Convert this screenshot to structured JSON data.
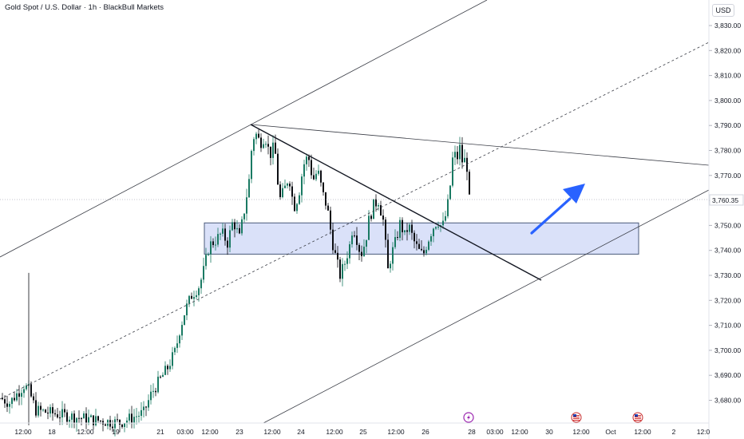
{
  "header": {
    "title": "Gold Spot / U.S. Dollar · 1h · BlackBull Markets",
    "currency": "USD"
  },
  "last_price_label": "3,760.35",
  "colors": {
    "up_body": "#1a7a63",
    "down_body": "#0b0d12",
    "zone_fill": "#d4dcf8",
    "zone_border": "#4a5a7a",
    "arrow": "#2962ff",
    "line": "#3a3d46",
    "grid": "#f0f3fa"
  },
  "event_icons": [
    "lightning-icon",
    "us-flag-icon",
    "us-flag-icon"
  ],
  "chart_data": {
    "type": "candlestick",
    "title": "Gold Spot / U.S. Dollar · 1h · BlackBull Markets",
    "ylabel": "USD",
    "ylim": [
      3672,
      3836
    ],
    "grid": false,
    "y_ticks": [
      "3,680.00",
      "3,690.00",
      "3,700.00",
      "3,710.00",
      "3,720.00",
      "3,730.00",
      "3,740.00",
      "3,750.00",
      "3,760.00",
      "3,770.00",
      "3,780.00",
      "3,790.00",
      "3,800.00",
      "3,810.00",
      "3,820.00",
      "3,830.00"
    ],
    "x_tick_labels": [
      "12:00",
      "18",
      "12:00",
      "19",
      "21",
      "03:00",
      "12:00",
      "23",
      "12:00",
      "24",
      "12:00",
      "25",
      "12:00",
      "26",
      "28",
      "03:00",
      "12:00",
      "30",
      "12:00",
      "Oct",
      "12:00",
      "2",
      "12:0"
    ],
    "last_price": 3760.35,
    "price_path": [
      [
        0,
        3681
      ],
      [
        12,
        3679
      ],
      [
        30,
        3686
      ],
      [
        36,
        3684
      ],
      [
        45,
        3676
      ],
      [
        80,
        3674
      ],
      [
        120,
        3672
      ],
      [
        150,
        3671
      ],
      [
        180,
        3675
      ],
      [
        190,
        3683
      ],
      [
        200,
        3688
      ],
      [
        210,
        3693
      ],
      [
        220,
        3700
      ],
      [
        225,
        3708
      ],
      [
        232,
        3716
      ],
      [
        240,
        3722
      ],
      [
        250,
        3726
      ],
      [
        256,
        3733
      ],
      [
        262,
        3742
      ],
      [
        270,
        3744
      ],
      [
        278,
        3747
      ],
      [
        285,
        3743
      ],
      [
        292,
        3752
      ],
      [
        300,
        3745
      ],
      [
        306,
        3756
      ],
      [
        312,
        3768
      ],
      [
        316,
        3784
      ],
      [
        320,
        3787
      ],
      [
        326,
        3783
      ],
      [
        332,
        3786
      ],
      [
        338,
        3778
      ],
      [
        344,
        3782
      ],
      [
        350,
        3760
      ],
      [
        356,
        3764
      ],
      [
        362,
        3770
      ],
      [
        368,
        3757
      ],
      [
        374,
        3762
      ],
      [
        380,
        3774
      ],
      [
        386,
        3778
      ],
      [
        392,
        3768
      ],
      [
        398,
        3772
      ],
      [
        404,
        3763
      ],
      [
        410,
        3757
      ],
      [
        416,
        3744
      ],
      [
        420,
        3738
      ],
      [
        426,
        3730
      ],
      [
        432,
        3735
      ],
      [
        438,
        3742
      ],
      [
        442,
        3750
      ],
      [
        446,
        3746
      ],
      [
        452,
        3738
      ],
      [
        458,
        3744
      ],
      [
        462,
        3752
      ],
      [
        468,
        3758
      ],
      [
        474,
        3760
      ],
      [
        480,
        3752
      ],
      [
        486,
        3732
      ],
      [
        490,
        3738
      ],
      [
        496,
        3744
      ],
      [
        502,
        3752
      ],
      [
        506,
        3745
      ],
      [
        512,
        3750
      ],
      [
        518,
        3744
      ],
      [
        524,
        3740
      ],
      [
        530,
        3738
      ],
      [
        536,
        3744
      ],
      [
        542,
        3749
      ],
      [
        548,
        3752
      ],
      [
        554,
        3749
      ],
      [
        560,
        3756
      ],
      [
        564,
        3766
      ],
      [
        568,
        3780
      ],
      [
        572,
        3776
      ],
      [
        576,
        3781
      ],
      [
        580,
        3774
      ],
      [
        584,
        3778
      ],
      [
        588,
        3760
      ]
    ],
    "support_zone": [
      3738.5,
      3751
    ],
    "annotations": [
      "ascending channel",
      "descending trendline",
      "support zone",
      "projection arrow"
    ]
  }
}
